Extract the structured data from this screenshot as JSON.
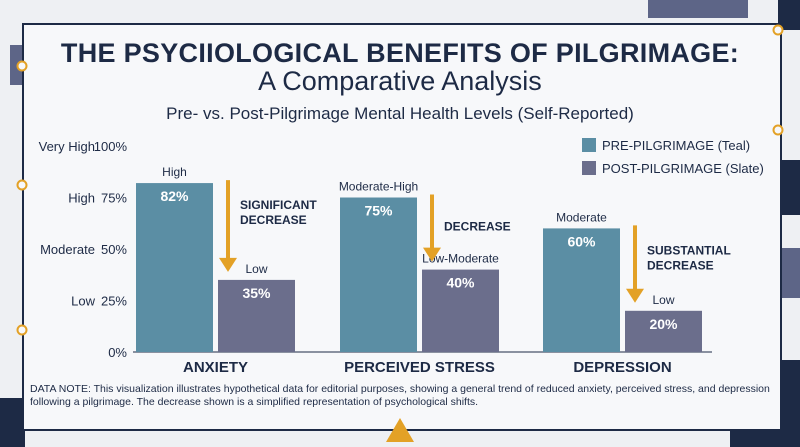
{
  "colors": {
    "pre": "#5b8ea4",
    "post": "#6b6e8c",
    "arrow": "#e3a126",
    "navy": "#1d2a45",
    "slate_deco": "#5d6587"
  },
  "header": {
    "title_line1": "THE PSYCIIOLOGICAL BENEFITS OF PILGRIMAGE:",
    "title_line2": "A Comparative Analysis",
    "subtitle": "Pre- vs. Post-Pilgrimage Mental Health Levels (Self-Reported)"
  },
  "chart_data": {
    "type": "bar",
    "title": "Pre- vs. Post-Pilgrimage Mental Health Levels (Self-Reported)",
    "categories": [
      "ANXIETY",
      "PERCEIVED STRESS",
      "DEPRESSION"
    ],
    "series": [
      {
        "name": "PRE-PILGRIMAGE (Teal)",
        "values": [
          82,
          75,
          60
        ],
        "value_labels": [
          "82%",
          "75%",
          "60%"
        ],
        "level_labels": [
          "High",
          "Moderate-High",
          "Moderate"
        ]
      },
      {
        "name": "POST-PILGRIMAGE (Slate)",
        "values": [
          35,
          40,
          20
        ],
        "value_labels": [
          "35%",
          "40%",
          "20%"
        ],
        "level_labels": [
          "Low",
          "Low-Moderate",
          "Low"
        ]
      }
    ],
    "annotations": [
      [
        "SIGNIFICANT",
        "DECREASE"
      ],
      [
        "DECREASE"
      ],
      [
        "SUBSTANTIAL",
        "DECREASE"
      ]
    ],
    "y_ticks": [
      {
        "value": 100,
        "label": "100%",
        "level": "Very High"
      },
      {
        "value": 75,
        "label": "75%",
        "level": "High"
      },
      {
        "value": 50,
        "label": "50%",
        "level": "Moderate"
      },
      {
        "value": 25,
        "label": "25%",
        "level": "Low"
      },
      {
        "value": 0,
        "label": "0%",
        "level": ""
      }
    ],
    "ylim": [
      0,
      100
    ],
    "legend_position": "top-right",
    "grid": false
  },
  "legend": {
    "pre_label": "PRE-PILGRIMAGE (Teal)",
    "post_label": "POST-PILGRIMAGE (Slate)"
  },
  "footer": {
    "note": "DATA NOTE: This visualization illustrates hypothetical data for editorial purposes, showing a general trend of reduced anxiety, perceived stress, and depression following a pilgrimage. The decrease shown is a simplified representation of psychological shifts."
  }
}
